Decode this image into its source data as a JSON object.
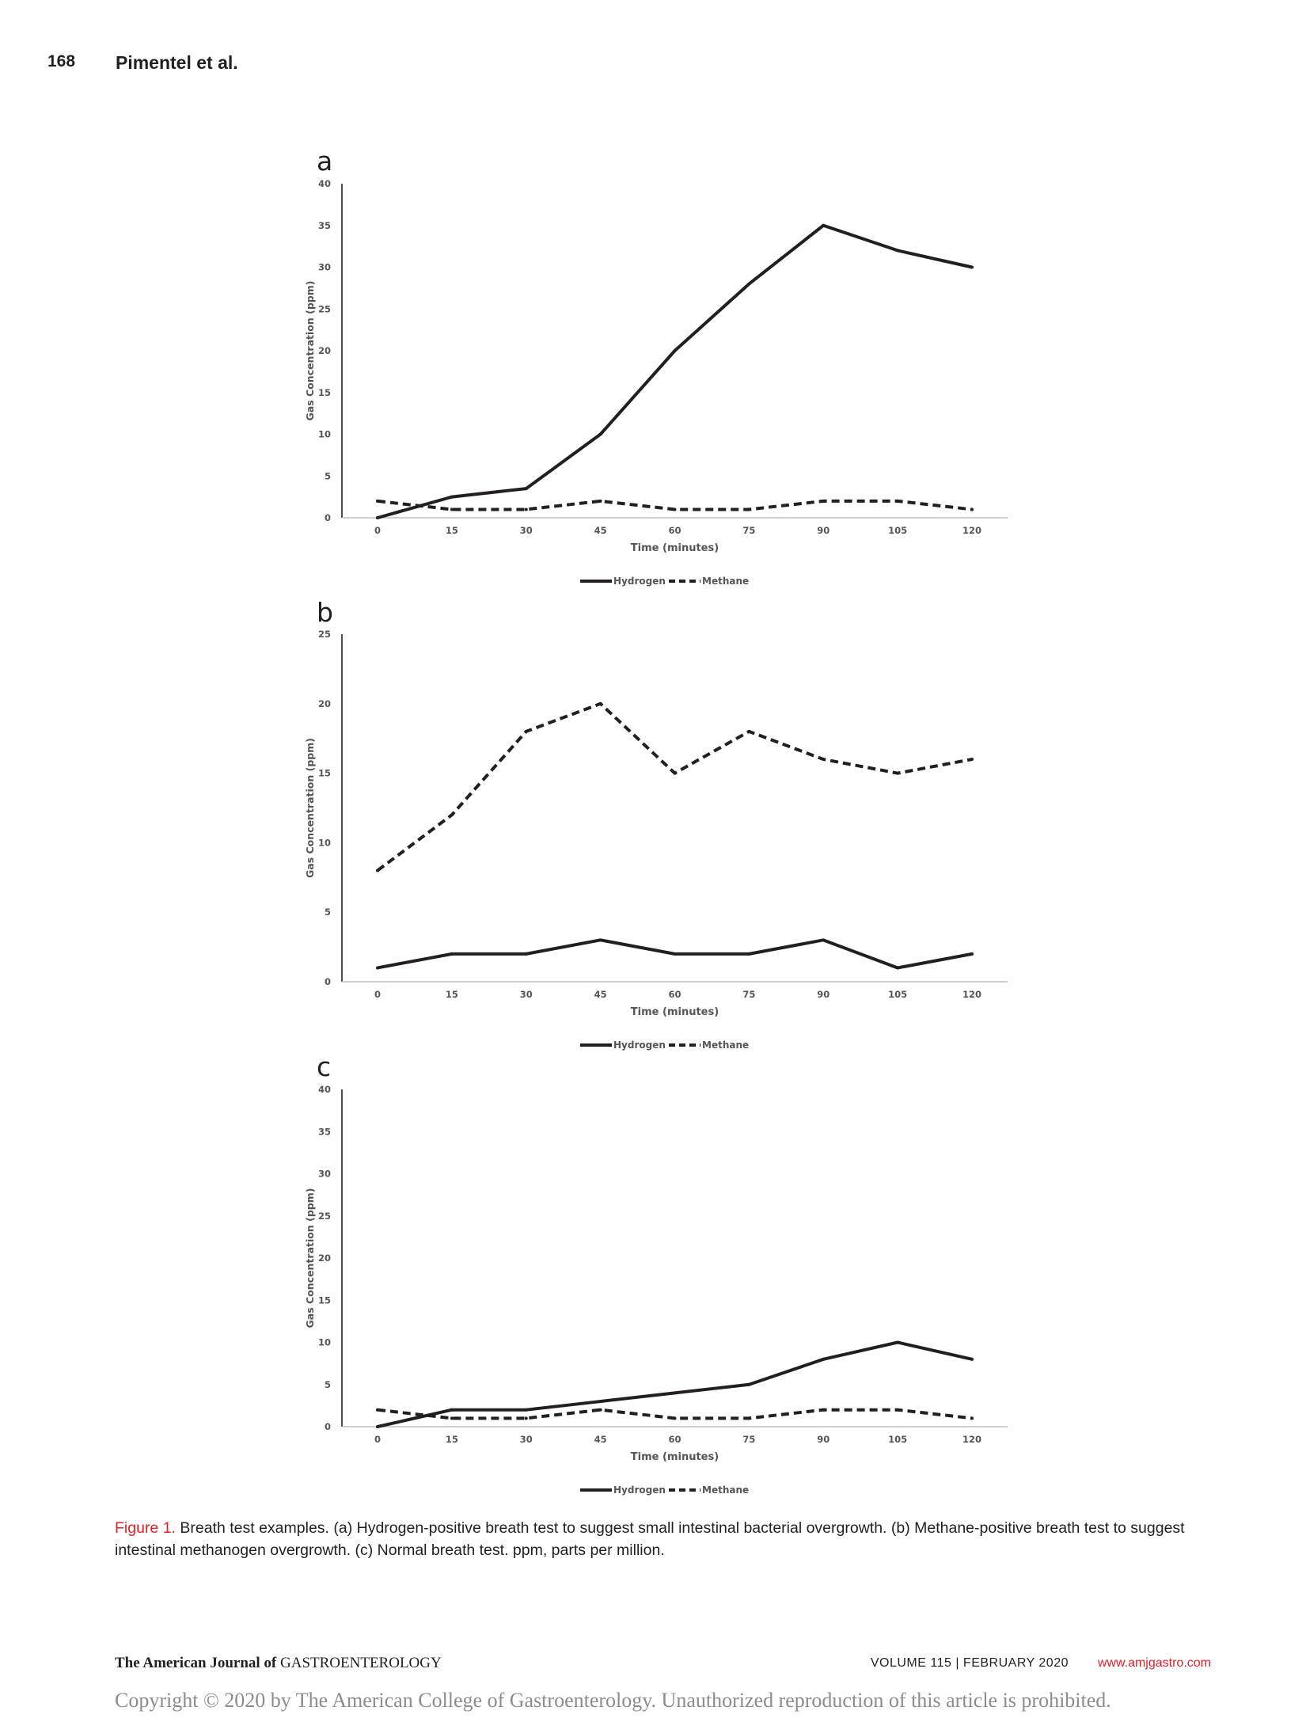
{
  "header": {
    "page_number": "168",
    "authors": "Pimentel et al."
  },
  "chart_data": [
    {
      "panel_label": "a",
      "type": "line",
      "x": [
        0,
        15,
        30,
        45,
        60,
        75,
        90,
        105,
        120
      ],
      "series": [
        {
          "name": "Hydrogen",
          "style": "solid",
          "values": [
            0,
            2.5,
            3.5,
            10,
            20,
            28,
            35,
            32,
            30
          ]
        },
        {
          "name": "Methane",
          "style": "dashed",
          "values": [
            2,
            1,
            1,
            2,
            1,
            1,
            2,
            2,
            1
          ]
        }
      ],
      "xlabel": "Time (minutes)",
      "ylabel": "Gas Concentration (ppm)",
      "ylim": [
        0,
        40
      ],
      "yticks": [
        0,
        5,
        10,
        15,
        20,
        25,
        30,
        35,
        40
      ],
      "legend": "bottom-center",
      "grid": false
    },
    {
      "panel_label": "b",
      "type": "line",
      "x": [
        0,
        15,
        30,
        45,
        60,
        75,
        90,
        105,
        120
      ],
      "series": [
        {
          "name": "Hydrogen",
          "style": "solid",
          "values": [
            1,
            2,
            2,
            3,
            2,
            2,
            3,
            1,
            2
          ]
        },
        {
          "name": "Methane",
          "style": "dashed",
          "values": [
            8,
            12,
            18,
            20,
            15,
            18,
            16,
            15,
            16
          ]
        }
      ],
      "xlabel": "Time (minutes)",
      "ylabel": "Gas Concentration (ppm)",
      "ylim": [
        0,
        25
      ],
      "yticks": [
        0,
        5,
        10,
        15,
        20,
        25
      ],
      "legend": "bottom-center",
      "grid": false
    },
    {
      "panel_label": "c",
      "type": "line",
      "x": [
        0,
        15,
        30,
        45,
        60,
        75,
        90,
        105,
        120
      ],
      "series": [
        {
          "name": "Hydrogen",
          "style": "solid",
          "values": [
            0,
            2,
            2,
            3,
            4,
            5,
            8,
            10,
            8
          ]
        },
        {
          "name": "Methane",
          "style": "dashed",
          "values": [
            2,
            1,
            1,
            2,
            1,
            1,
            2,
            2,
            1
          ]
        }
      ],
      "xlabel": "Time (minutes)",
      "ylabel": "Gas Concentration (ppm)",
      "ylim": [
        0,
        40
      ],
      "yticks": [
        0,
        5,
        10,
        15,
        20,
        25,
        30,
        35,
        40
      ],
      "legend": "bottom-center",
      "grid": false
    }
  ],
  "caption": {
    "label": "Figure 1.",
    "text": " Breath test examples. (a) Hydrogen-positive breath test to suggest small intestinal bacterial overgrowth. (b) Methane-positive breath test to suggest intestinal methanogen overgrowth. (c) Normal breath test. ppm, parts per million."
  },
  "footer": {
    "journal_bold": "The American Journal of",
    "journal_name": " GASTROENTEROLOGY",
    "volume": "VOLUME 115 | FEBRUARY 2020",
    "url": "www.amjgastro.com"
  },
  "copyright": "Copyright © 2020 by The American College of Gastroenterology. Unauthorized reproduction of this article is prohibited.",
  "colors": {
    "ink": "#231f20",
    "accent": "#e31e24",
    "axis": "#bfbfbf",
    "copyright": "#8c8c8c"
  }
}
